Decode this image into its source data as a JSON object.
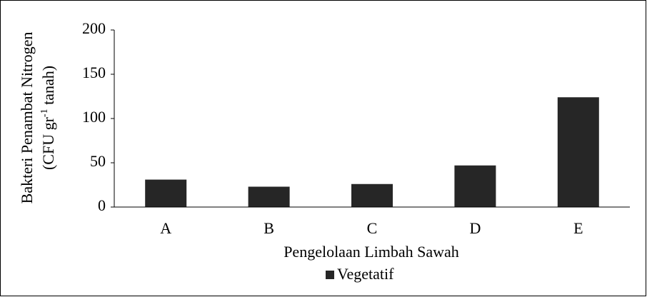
{
  "chart_data": {
    "type": "bar",
    "categories": [
      "A",
      "B",
      "C",
      "D",
      "E"
    ],
    "series": [
      {
        "name": "Vegetatif",
        "color": "#262626",
        "values": [
          31,
          23,
          26,
          47,
          124
        ]
      }
    ],
    "ylim": [
      0,
      200
    ],
    "yticks": [
      0,
      50,
      100,
      150,
      200
    ],
    "xlabel": "Pengelolaan Limbah Sawah",
    "ylabel": {
      "line1": "Bakteri Penambat Nitrogen",
      "line2": [
        "(CFU gr",
        "-1",
        " tanah)"
      ]
    },
    "legend": "bottom"
  }
}
